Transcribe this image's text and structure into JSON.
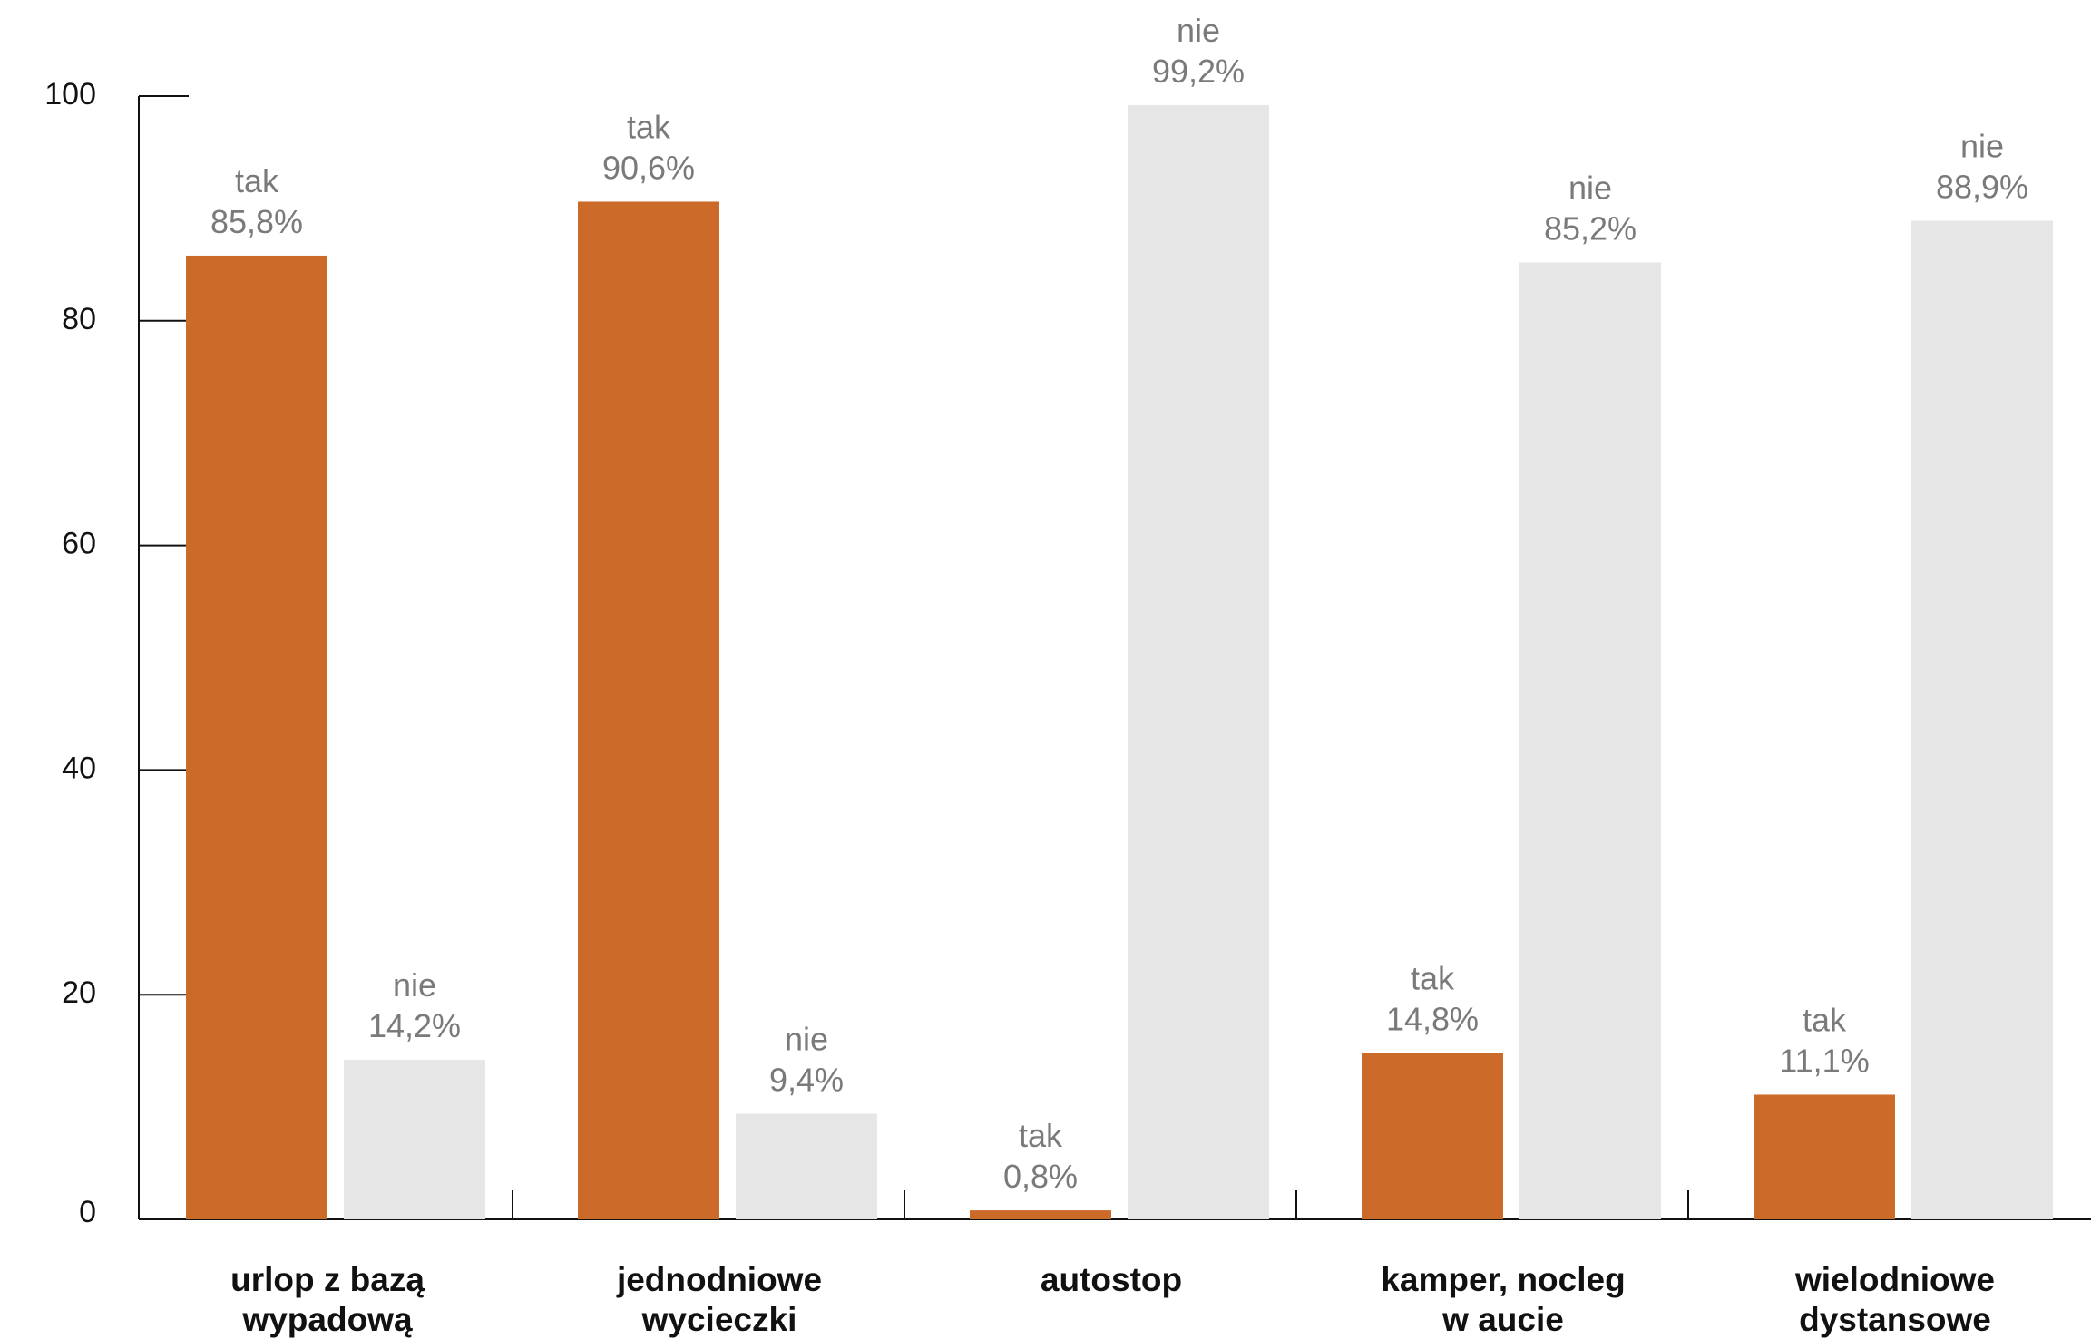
{
  "chart_data": {
    "type": "bar",
    "categories": [
      [
        "urlop z bazą",
        "wypadową"
      ],
      [
        "jednodniowe",
        "wycieczki"
      ],
      [
        "autostop"
      ],
      [
        "kamper, nocleg",
        "w aucie"
      ],
      [
        "wielodniowe",
        "dystansowe"
      ]
    ],
    "series": [
      {
        "name": "tak",
        "values": [
          85.8,
          90.6,
          0.8,
          14.8,
          11.1
        ],
        "labels": [
          "85,8%",
          "90,6%",
          "0,8%",
          "14,8%",
          "11,1%"
        ]
      },
      {
        "name": "nie",
        "values": [
          14.2,
          9.4,
          99.2,
          85.2,
          88.9
        ],
        "labels": [
          "14,2%",
          "9,4%",
          "99,2%",
          "85,2%",
          "88,9%"
        ]
      }
    ],
    "yticks": [
      "0",
      "20",
      "40",
      "60",
      "80",
      "100"
    ],
    "ylim": [
      0,
      100
    ],
    "colors": {
      "tak": "#cc6a2a",
      "nie": "#e6e6e6",
      "axis": "#111111"
    },
    "grid": false,
    "legend": "none"
  }
}
